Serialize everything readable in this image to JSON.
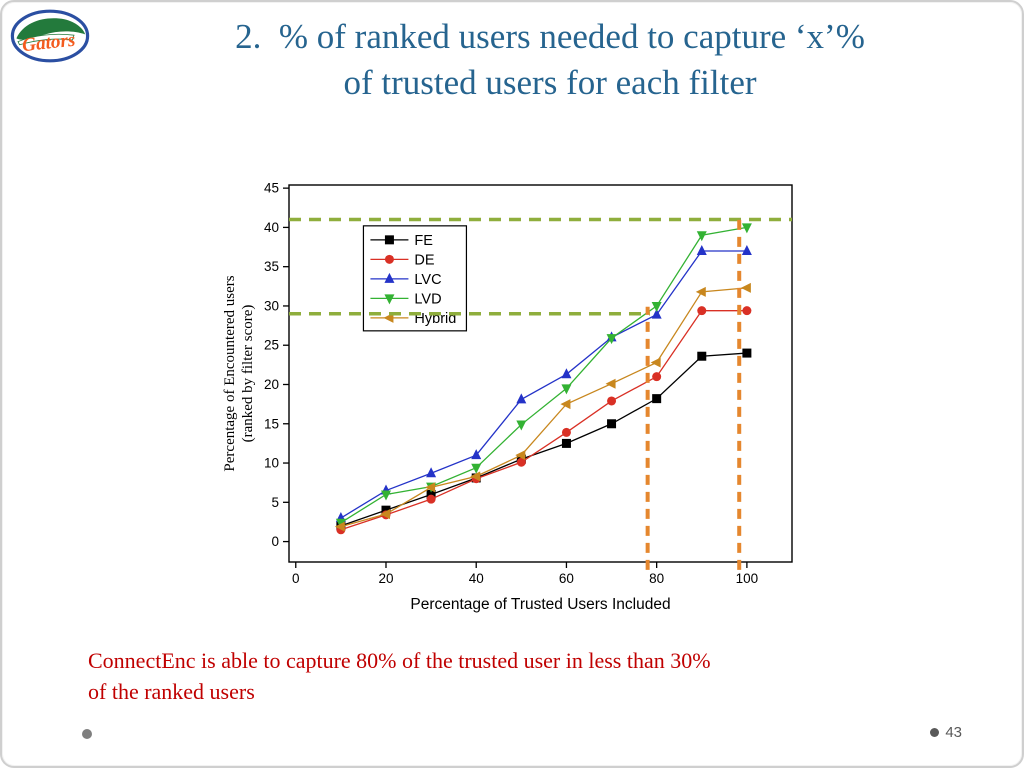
{
  "slide": {
    "title_line1": "2.  % of ranked users needed to capture ‘x’%",
    "title_line2": "of trusted users for each filter",
    "logo_text": "Gators",
    "caption_line1": "ConnectEnc is able to capture 80% of the trusted user in less than 30%",
    "caption_line2": "of the ranked users",
    "page_number": "43"
  },
  "theme": {
    "title_color": "#26648F",
    "caption_color": "#C00000",
    "footer_color": "#595959",
    "slide_border_color": "#CFCFCF"
  },
  "chart_data": {
    "type": "line",
    "title": "",
    "xlabel": "Percentage of Trusted Users Included",
    "ylabel": [
      "Percentage of Encountered users",
      "(ranked by filter score)"
    ],
    "x": [
      10,
      20,
      30,
      40,
      50,
      60,
      70,
      80,
      90,
      100
    ],
    "series": [
      {
        "name": "FE",
        "color": "#000000",
        "marker": "square",
        "values": [
          2.0,
          4.0,
          6.0,
          8.1,
          10.5,
          12.5,
          15.0,
          18.2,
          23.6,
          24.0
        ]
      },
      {
        "name": "DE",
        "color": "#D93025",
        "marker": "circle",
        "values": [
          1.5,
          3.4,
          5.4,
          8.0,
          10.1,
          13.9,
          17.9,
          21.0,
          29.4,
          29.4
        ]
      },
      {
        "name": "LVC",
        "color": "#2433C8",
        "marker": "triangle-up",
        "values": [
          3.0,
          6.5,
          8.7,
          11.0,
          18.1,
          21.3,
          26.0,
          28.9,
          37.0,
          37.0
        ]
      },
      {
        "name": "LVD",
        "color": "#33B233",
        "marker": "triangle-down",
        "values": [
          2.4,
          6.0,
          7.0,
          9.4,
          14.9,
          19.5,
          25.9,
          30.0,
          39.0,
          40.0
        ]
      },
      {
        "name": "Hybrid",
        "color": "#C8871E",
        "marker": "triangle-left",
        "values": [
          1.9,
          3.5,
          6.9,
          8.3,
          11.0,
          17.5,
          20.1,
          22.8,
          31.8,
          32.3
        ]
      }
    ],
    "xlim": [
      -1.5,
      110
    ],
    "ylim": [
      -2.6,
      45.4
    ],
    "xticks": [
      0,
      20,
      40,
      60,
      80,
      100
    ],
    "yticks": [
      0,
      5,
      10,
      15,
      20,
      25,
      30,
      35,
      40,
      45
    ],
    "grid": false,
    "legend_position": "upper-left-inside",
    "legend_pos": [
      15,
      40.2
    ],
    "annotations": {
      "hlines": [
        {
          "y": 41.0,
          "x1": -1.5,
          "x2": 110.0,
          "color": "#8FAE3C"
        },
        {
          "y": 29.0,
          "x1": -1.5,
          "x2": 78.5,
          "color": "#8FAE3C"
        }
      ],
      "vlines": [
        {
          "x": 78.0,
          "y1": -3.6,
          "y2": 29.9,
          "color": "#E5872E"
        },
        {
          "x": 98.3,
          "y1": -3.6,
          "y2": 41.0,
          "color": "#E5872E"
        }
      ]
    }
  }
}
